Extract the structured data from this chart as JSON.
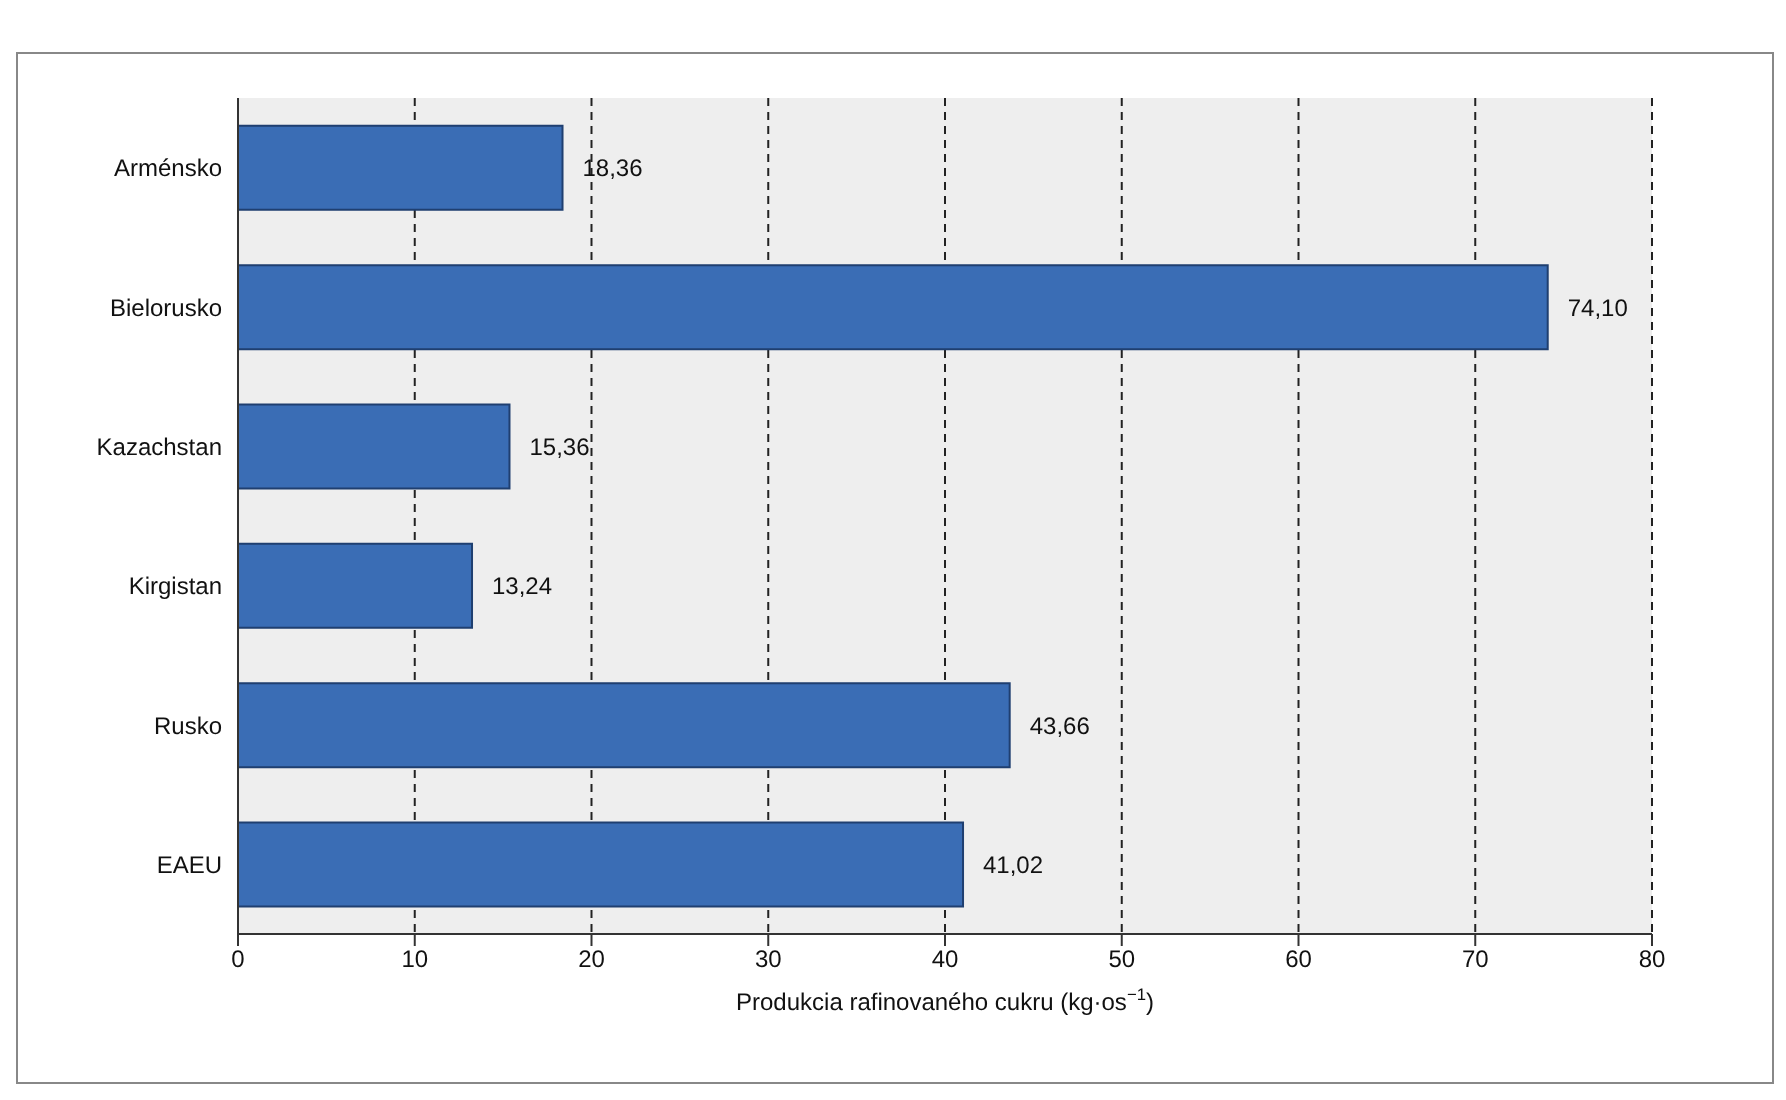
{
  "chart_data": {
    "type": "bar",
    "orientation": "horizontal",
    "categories": [
      "Arménsko",
      "Bielorusko",
      "Kazachstan",
      "Kirgistan",
      "Rusko",
      "EAEU"
    ],
    "values": [
      18.36,
      74.1,
      15.36,
      13.24,
      43.66,
      41.02
    ],
    "value_labels": [
      "18,36",
      "74,10",
      "15,36",
      "13,24",
      "43,66",
      "41,02"
    ],
    "color": "#3a6db5",
    "xlabel": "Produkcia rafinovaného cukru (kg·os$^{−1}$)",
    "xlim": [
      0,
      80
    ],
    "xticks": [
      0,
      10,
      20,
      30,
      40,
      50,
      60,
      70,
      80
    ],
    "grid": "x"
  }
}
